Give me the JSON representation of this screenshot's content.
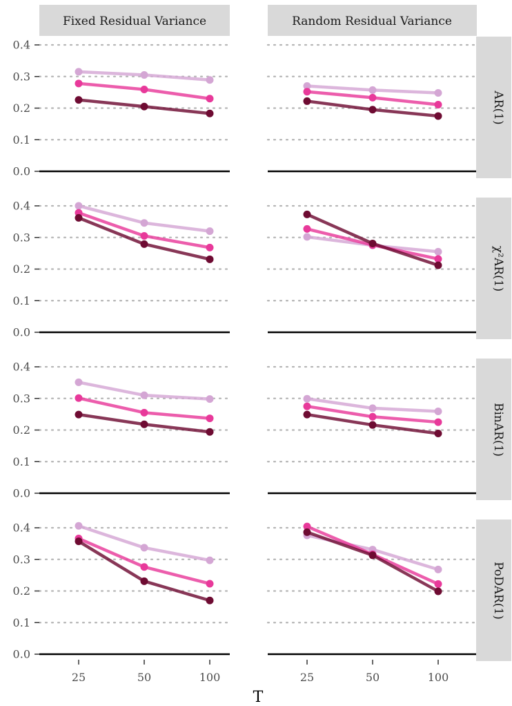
{
  "chart_data": {
    "type": "line",
    "xlabel": "T",
    "ylabel": "",
    "x": [
      25,
      50,
      100
    ],
    "x_tick_labels": [
      "25",
      "50",
      "100"
    ],
    "y_ticks": [
      "0.0",
      "0.1",
      "0.2",
      "0.3",
      "0.4"
    ],
    "ylim": [
      0,
      0.4
    ],
    "grid": "horizontal dotted",
    "legend": "none",
    "column_facets": [
      "Fixed Residual Variance",
      "Random Residual Variance"
    ],
    "row_facets": [
      "AR(1)",
      "χ²AR(1)",
      "BinAR(1)",
      "PoDAR(1)"
    ],
    "series_colors": [
      "#d4a6d4",
      "#e8399a",
      "#6e0b32"
    ],
    "panels": [
      {
        "row": 0,
        "col": 0,
        "series": [
          {
            "values": [
              0.315,
              0.305,
              0.289
            ]
          },
          {
            "values": [
              0.278,
              0.259,
              0.23
            ]
          },
          {
            "values": [
              0.226,
              0.205,
              0.183
            ]
          }
        ]
      },
      {
        "row": 0,
        "col": 1,
        "series": [
          {
            "values": [
              0.27,
              0.257,
              0.248
            ]
          },
          {
            "values": [
              0.252,
              0.233,
              0.211
            ]
          },
          {
            "values": [
              0.222,
              0.195,
              0.175
            ]
          }
        ]
      },
      {
        "row": 1,
        "col": 0,
        "series": [
          {
            "values": [
              0.4,
              0.346,
              0.32
            ]
          },
          {
            "values": [
              0.378,
              0.305,
              0.268
            ]
          },
          {
            "values": [
              0.362,
              0.279,
              0.231
            ]
          }
        ]
      },
      {
        "row": 1,
        "col": 1,
        "series": [
          {
            "values": [
              0.302,
              0.275,
              0.255
            ]
          },
          {
            "values": [
              0.327,
              0.276,
              0.232
            ]
          },
          {
            "values": [
              0.373,
              0.281,
              0.212
            ]
          }
        ]
      },
      {
        "row": 2,
        "col": 0,
        "series": [
          {
            "values": [
              0.351,
              0.31,
              0.298
            ]
          },
          {
            "values": [
              0.301,
              0.255,
              0.237
            ]
          },
          {
            "values": [
              0.249,
              0.218,
              0.194
            ]
          }
        ]
      },
      {
        "row": 2,
        "col": 1,
        "series": [
          {
            "values": [
              0.299,
              0.269,
              0.259
            ]
          },
          {
            "values": [
              0.275,
              0.242,
              0.225
            ]
          },
          {
            "values": [
              0.249,
              0.216,
              0.189
            ]
          }
        ]
      },
      {
        "row": 3,
        "col": 0,
        "series": [
          {
            "values": [
              0.406,
              0.337,
              0.297
            ]
          },
          {
            "values": [
              0.366,
              0.276,
              0.223
            ]
          },
          {
            "values": [
              0.357,
              0.231,
              0.17
            ]
          }
        ]
      },
      {
        "row": 3,
        "col": 1,
        "series": [
          {
            "values": [
              0.376,
              0.331,
              0.268
            ]
          },
          {
            "values": [
              0.404,
              0.316,
              0.222
            ]
          },
          {
            "values": [
              0.386,
              0.313,
              0.199
            ]
          }
        ]
      }
    ]
  }
}
